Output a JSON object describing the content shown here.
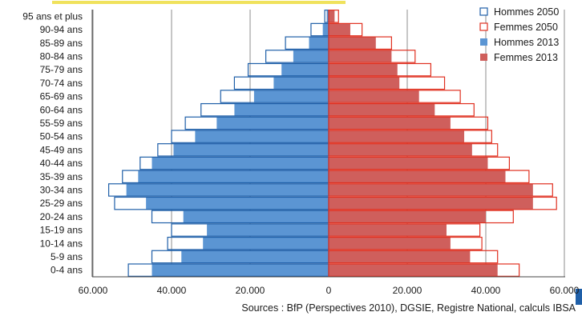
{
  "chart_data": {
    "type": "bar",
    "orientation": "horizontal",
    "layout": "population-pyramid",
    "categories": [
      "0-4 ans",
      "5-9 ans",
      "10-14 ans",
      "15-19 ans",
      "20-24 ans",
      "25-29 ans",
      "30-34 ans",
      "35-39 ans",
      "40-44 ans",
      "45-49 ans",
      "50-54 ans",
      "55-59 ans",
      "60-64 ans",
      "65-69 ans",
      "70-74 ans",
      "75-79 ans",
      "80-84 ans",
      "85-89 ans",
      "90-94 ans",
      "95 ans et plus"
    ],
    "series": [
      {
        "name": "Hommes 2050",
        "side": "left",
        "style": "outline",
        "color": "#1f5fa8",
        "values": [
          51000,
          45000,
          41000,
          40000,
          45000,
          54500,
          56000,
          52500,
          48000,
          43500,
          40000,
          36500,
          32500,
          27500,
          24000,
          20500,
          16000,
          11000,
          4500,
          1000
        ]
      },
      {
        "name": "Femmes 2050",
        "side": "right",
        "style": "outline",
        "color": "#e03020",
        "values": [
          48500,
          43000,
          39000,
          38500,
          47000,
          58000,
          57000,
          51000,
          46000,
          43000,
          41500,
          40500,
          37000,
          33500,
          29500,
          26000,
          22000,
          16000,
          8500,
          2500
        ]
      },
      {
        "name": "Hommes 2013",
        "side": "left",
        "style": "filled",
        "color": "#5b95d3",
        "values": [
          45000,
          37500,
          32000,
          31000,
          37000,
          46500,
          51500,
          48500,
          45000,
          39500,
          34000,
          28500,
          24000,
          19000,
          14000,
          12000,
          9000,
          5000,
          1500,
          500
        ]
      },
      {
        "name": "Femmes 2013",
        "side": "right",
        "style": "filled",
        "color": "#cf5f5c",
        "values": [
          43000,
          36000,
          31000,
          30000,
          40000,
          52000,
          52000,
          45000,
          40500,
          36500,
          34500,
          31000,
          27000,
          23000,
          18000,
          17500,
          16000,
          12000,
          5500,
          1500
        ]
      }
    ],
    "x_ticks": [
      "60.000",
      "40.000",
      "20.000",
      "0",
      "20.000",
      "40.000",
      "60.000"
    ],
    "xlim": [
      -60000,
      60000
    ],
    "grid": "vertical",
    "legend_position": "top-right",
    "source": "Sources : BfP (Perspectives 2010), DGSIE, Registre National, calculs IBSA"
  },
  "colors": {
    "axis": "#444444",
    "grid": "#8c8c8c",
    "accent_top": "#f0e25c",
    "accent_right": "#1f5fa8"
  }
}
